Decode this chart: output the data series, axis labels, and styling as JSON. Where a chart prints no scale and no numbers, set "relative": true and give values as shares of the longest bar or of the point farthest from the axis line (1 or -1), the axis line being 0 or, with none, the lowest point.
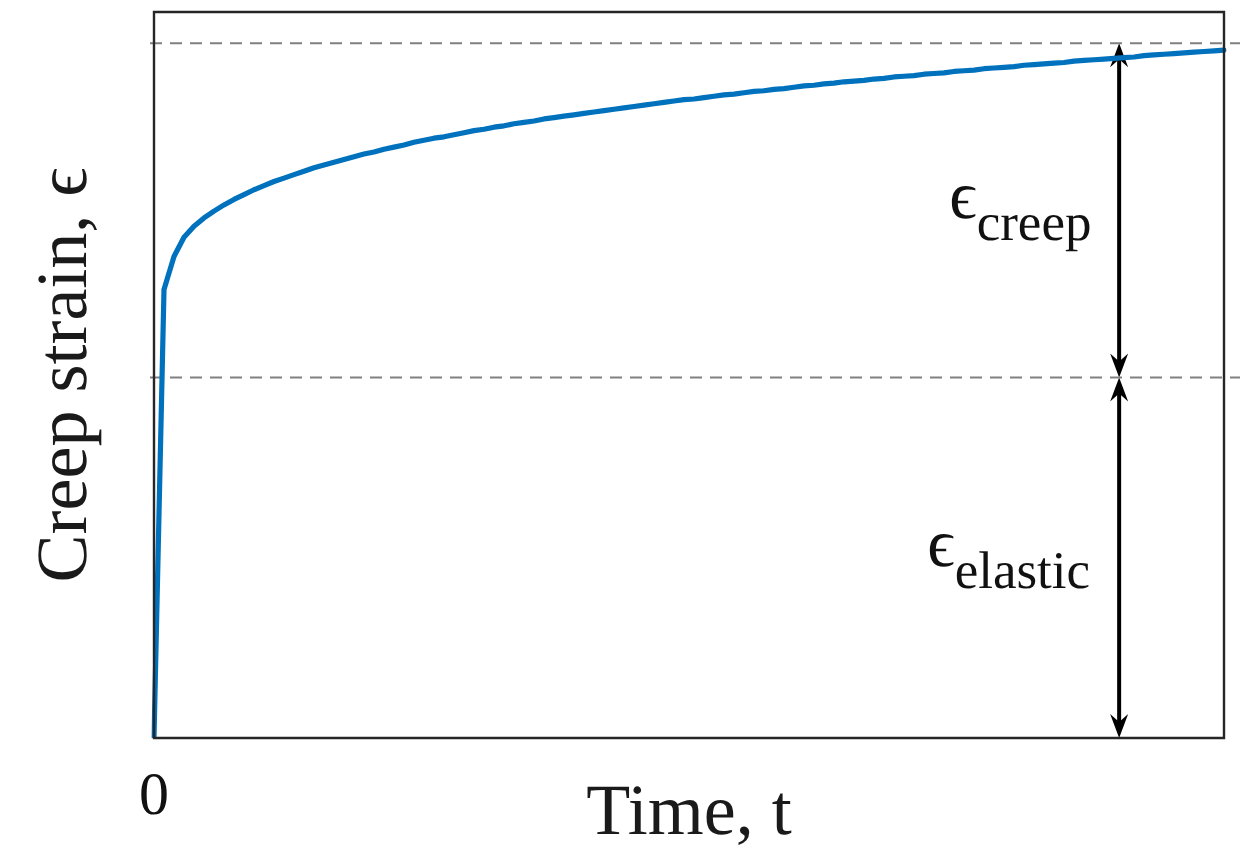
{
  "chart_data": {
    "type": "line",
    "xlabel": "Time, t",
    "ylabel": "Creep strain, ϵ",
    "relative": true,
    "marker": "none",
    "color": "#0072bd",
    "categories": [
      null,
      null,
      null,
      null,
      null,
      null,
      null,
      null,
      null,
      null,
      null,
      null,
      null,
      null,
      null,
      null,
      null,
      null,
      null,
      null,
      null,
      null,
      null,
      null,
      null,
      null,
      null,
      null,
      null,
      null,
      null,
      null,
      null,
      null,
      null,
      null,
      null,
      null,
      null,
      null,
      null,
      null,
      null,
      null,
      null,
      null,
      null,
      null,
      null,
      null,
      null,
      null,
      null,
      null,
      null,
      null,
      null,
      null,
      null,
      null,
      null,
      null,
      null,
      null,
      null,
      null,
      null,
      null,
      null,
      null,
      null,
      null,
      null,
      null,
      null,
      null,
      null,
      null,
      null,
      null,
      null,
      null,
      null,
      null,
      null,
      null,
      null,
      null,
      null,
      null,
      null,
      null,
      null,
      null,
      null,
      null,
      null,
      null,
      null,
      null,
      null,
      null,
      null,
      null,
      null,
      null,
      null,
      null
    ],
    "values": [
      0,
      0.652,
      0.7,
      0.728,
      0.744,
      0.756,
      0.766,
      0.775,
      0.783,
      0.79,
      0.797,
      0.803,
      0.809,
      0.814,
      0.819,
      0.824,
      0.829,
      0.833,
      0.837,
      0.841,
      0.845,
      0.849,
      0.852,
      0.856,
      0.859,
      0.862,
      0.866,
      0.869,
      0.872,
      0.874,
      0.877,
      0.88,
      0.883,
      0.885,
      0.888,
      0.89,
      0.893,
      0.895,
      0.897,
      0.9,
      0.902,
      0.904,
      0.906,
      0.908,
      0.91,
      0.912,
      0.914,
      0.916,
      0.918,
      0.92,
      0.922,
      0.924,
      0.926,
      0.928,
      0.929,
      0.931,
      0.933,
      0.935,
      0.936,
      0.938,
      0.94,
      0.941,
      0.943,
      0.944,
      0.946,
      0.948,
      0.949,
      0.951,
      0.952,
      0.954,
      0.955,
      0.956,
      0.958,
      0.959,
      0.961,
      0.962,
      0.963,
      0.965,
      0.966,
      0.967,
      0.969,
      0.97,
      0.971,
      0.973,
      0.974,
      0.975,
      0.976,
      0.978,
      0.979,
      0.98,
      0.981,
      0.982,
      0.984,
      0.985,
      0.986,
      0.987,
      0.988,
      0.989,
      0.99,
      0.992,
      0.993,
      0.994,
      0.995,
      0.996,
      0.997,
      0.998,
      0.999,
      1.0
    ],
    "ref_lines": [
      {
        "axis": "y",
        "value": 1.01,
        "color": "#808080",
        "line_style": "dashed"
      },
      {
        "axis": "y",
        "value": 0.524,
        "color": "#808080",
        "line_style": "dashed"
      }
    ],
    "annotations": [
      "ϵ$_{creep}$",
      "ϵ$_{elastic}$",
      "0"
    ]
  }
}
